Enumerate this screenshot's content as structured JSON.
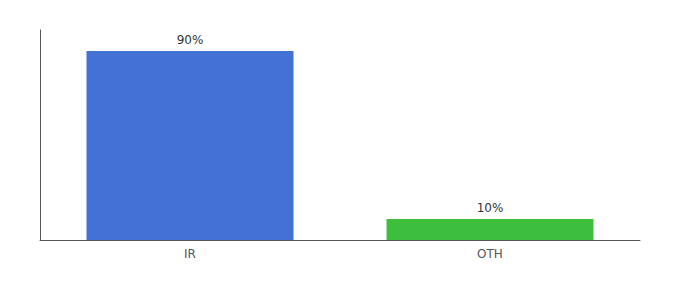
{
  "chart_data": {
    "type": "bar",
    "categories": [
      "IR",
      "OTH"
    ],
    "values": [
      90,
      10
    ],
    "value_labels": [
      "90%",
      "10%"
    ],
    "colors": [
      "#4472d4",
      "#3dbf3d"
    ],
    "data_labels": true,
    "ylim": [
      0,
      100
    ],
    "tick_labels": "x",
    "grid": false
  }
}
